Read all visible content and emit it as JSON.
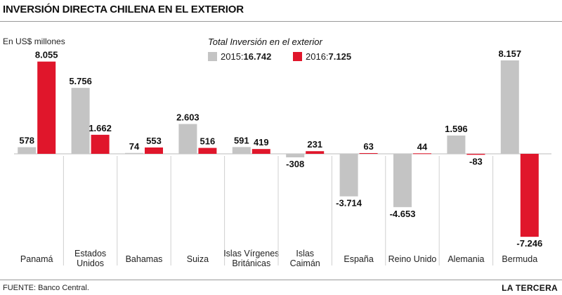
{
  "header": {
    "title": "INVERSIÓN DIRECTA CHILENA EN EL EXTERIOR"
  },
  "unit_label": "En US$ millones",
  "legend": {
    "title": "Total Inversión en el exterior",
    "items": [
      {
        "prefix": "2015: ",
        "total": "16.742",
        "color": "#c4c4c4"
      },
      {
        "prefix": "2016: ",
        "total": "7.125",
        "color": "#e0162b"
      }
    ]
  },
  "footer": {
    "source": "FUENTE: Banco Central.",
    "brand": "LA TERCERA"
  },
  "chart_data": {
    "type": "bar",
    "title": "INVERSIÓN DIRECTA CHILENA EN EL EXTERIOR",
    "ylabel": "En US$ millones",
    "categories": [
      [
        "Panamá"
      ],
      [
        "Estados",
        "Unidos"
      ],
      [
        "Bahamas"
      ],
      [
        "Suiza"
      ],
      [
        "Islas Vírgenes",
        "Británicas"
      ],
      [
        "Islas",
        "Caimán"
      ],
      [
        "España"
      ],
      [
        "Reino Unido"
      ],
      [
        "Alemania"
      ],
      [
        "Bermuda"
      ]
    ],
    "series": [
      {
        "name": "2015",
        "color": "#c4c4c4",
        "values": [
          578,
          5756,
          74,
          2603,
          591,
          -308,
          -3714,
          -4653,
          1596,
          8157
        ],
        "labels": [
          "578",
          "5.756",
          "74",
          "2.603",
          "591",
          "-308",
          "-3.714",
          "-4.653",
          "1.596",
          "8.157"
        ]
      },
      {
        "name": "2016",
        "color": "#e0162b",
        "values": [
          8055,
          1662,
          553,
          516,
          419,
          231,
          63,
          44,
          -83,
          -7246
        ],
        "labels": [
          "8.055",
          "1.662",
          "553",
          "516",
          "419",
          "231",
          "63",
          "44",
          "-83",
          "-7.246"
        ]
      }
    ],
    "grid": false,
    "legend_position": "top-center"
  }
}
